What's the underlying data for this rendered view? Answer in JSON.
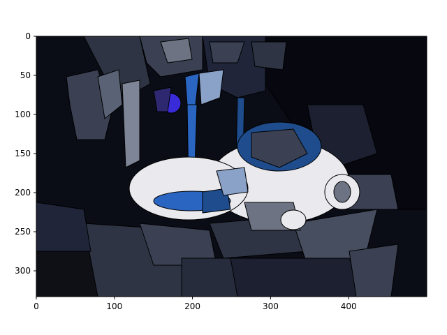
{
  "figure": {
    "image_description_name": "segmented-image",
    "x_ticks": [
      "0",
      "100",
      "200",
      "300",
      "400"
    ],
    "y_ticks": [
      "0",
      "50",
      "100",
      "150",
      "200",
      "250",
      "300"
    ],
    "x_tick_values": [
      0,
      100,
      200,
      300,
      400
    ],
    "y_tick_values": [
      0,
      50,
      100,
      150,
      200,
      250,
      300
    ],
    "x_range": [
      0,
      500
    ],
    "y_range": [
      0,
      333
    ],
    "colors": {
      "frame": "#000000",
      "dark_bg": "#0b0d16",
      "darker_bg": "#06070f",
      "slate": "#3b4153",
      "slate_light": "#5a6275",
      "slate_pale": "#7d8596",
      "cup_white": "#e9e9ee",
      "blue_bright": "#2a65c2",
      "blue_mid": "#1e4c8c",
      "blue_pale": "#8aa2c8",
      "violet": "#3a2bd9",
      "navy": "#1c2240"
    }
  }
}
